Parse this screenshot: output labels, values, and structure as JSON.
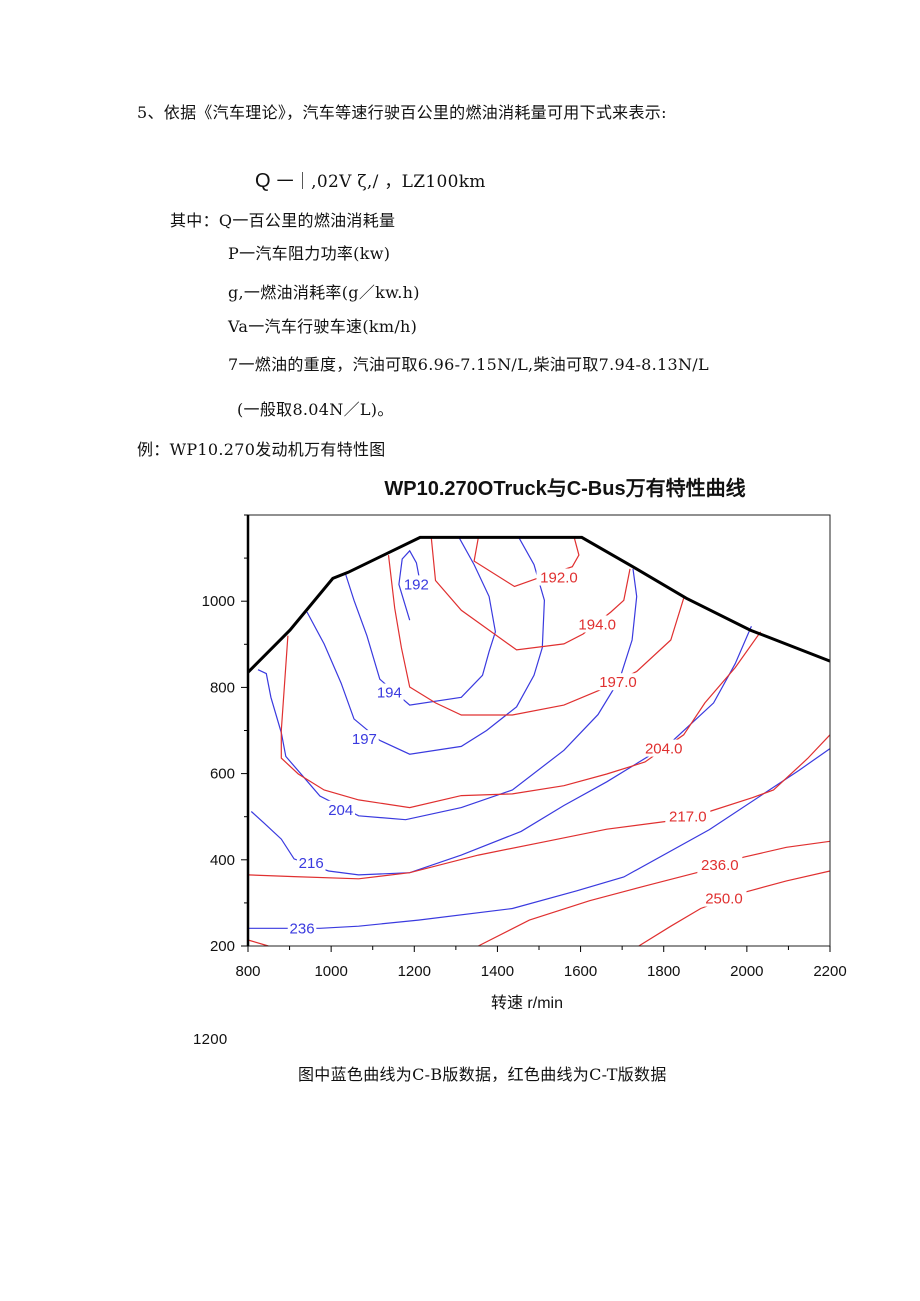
{
  "document": {
    "heading": "5、依据《汽车理论》，汽车等速行驶百公里的燃油消耗量可用下式来表示:",
    "formula_q": "Q",
    "formula_rest": "一｜,02V ζ,/ ，LZ100km",
    "where_line": "其中：Q一百公里的燃油消耗量",
    "defs": [
      "P一汽车阻力功率(kw)",
      "g,一燃油消耗率(g／kw.h)",
      "Va一汽车行驶车速(km/h)",
      "7一燃油的重度，汽油可取6.96-7.15N/L,柴油可取7.94-8.13N/L"
    ],
    "note": "(一般取8.04N／L)。",
    "example": "例：WP10.270发动机万有特性图",
    "stray_number": "1200",
    "caption": "图中蓝色曲线为C-B版数据，红色曲线为C-T版数据"
  },
  "chart_data": {
    "type": "contour",
    "title": "WP10.270OTruck与C-Bus万有特性曲线",
    "xlabel": "转速 r/min",
    "ylabel": "",
    "xlim": [
      800,
      2200
    ],
    "ylim": [
      200,
      1200
    ],
    "xticks": [
      800,
      1000,
      1200,
      1400,
      1600,
      1800,
      2000,
      2200
    ],
    "yticks": [
      200,
      400,
      600,
      800,
      1000
    ],
    "grid": false,
    "colors": {
      "blue": "#3a3adf",
      "red": "#e03030",
      "boundary": "#000000"
    },
    "boundary": [
      [
        800,
        835
      ],
      [
        901,
        933
      ],
      [
        1004,
        1053
      ],
      [
        1041,
        1067
      ],
      [
        1214,
        1148
      ],
      [
        1603,
        1148
      ],
      [
        1724,
        1081
      ],
      [
        1854,
        1007
      ],
      [
        2008,
        933
      ],
      [
        2200,
        861
      ]
    ],
    "series": [
      {
        "color": "blue",
        "label": "192",
        "label_point": [
          1205,
          1039
        ],
        "points": [
          [
            1189,
            956
          ],
          [
            1163,
            1039
          ],
          [
            1171,
            1098
          ],
          [
            1189,
            1117
          ],
          [
            1205,
            1089
          ],
          [
            1215,
            1039
          ]
        ]
      },
      {
        "color": "blue",
        "label": "194",
        "label_point": [
          1140,
          788
        ],
        "points": [
          [
            1308,
            1147
          ],
          [
            1344,
            1085
          ],
          [
            1380,
            1011
          ],
          [
            1395,
            929
          ],
          [
            1380,
            883
          ],
          [
            1364,
            828
          ],
          [
            1313,
            777
          ],
          [
            1189,
            759
          ],
          [
            1117,
            819
          ],
          [
            1086,
            920
          ],
          [
            1055,
            1002
          ],
          [
            1035,
            1062
          ]
        ]
      },
      {
        "color": "blue",
        "label": "197",
        "label_point": [
          1080,
          680
        ],
        "points": [
          [
            1452,
            1147
          ],
          [
            1488,
            1085
          ],
          [
            1513,
            1002
          ],
          [
            1508,
            892
          ],
          [
            1488,
            828
          ],
          [
            1446,
            755
          ],
          [
            1374,
            700
          ],
          [
            1313,
            663
          ],
          [
            1189,
            645
          ],
          [
            1117,
            677
          ],
          [
            1055,
            727
          ],
          [
            1024,
            810
          ],
          [
            983,
            901
          ],
          [
            942,
            975
          ]
        ]
      },
      {
        "color": "blue",
        "label": "204",
        "label_point": [
          1023,
          516
        ],
        "points": [
          [
            1726,
            1075
          ],
          [
            1735,
            1011
          ],
          [
            1724,
            910
          ],
          [
            1694,
            819
          ],
          [
            1642,
            737
          ],
          [
            1560,
            654
          ],
          [
            1436,
            562
          ],
          [
            1313,
            521
          ],
          [
            1179,
            493
          ],
          [
            1066,
            502
          ],
          [
            973,
            548
          ],
          [
            932,
            594
          ],
          [
            891,
            640
          ],
          [
            880,
            695
          ],
          [
            855,
            777
          ],
          [
            844,
            832
          ],
          [
            824,
            841
          ]
        ]
      },
      {
        "color": "blue",
        "label": "216",
        "label_point": [
          952,
          392
        ],
        "points": [
          [
            2011,
            942
          ],
          [
            1972,
            855
          ],
          [
            1920,
            764
          ],
          [
            1817,
            672
          ],
          [
            1663,
            581
          ],
          [
            1560,
            526
          ],
          [
            1457,
            466
          ],
          [
            1313,
            411
          ],
          [
            1189,
            370
          ],
          [
            1066,
            365
          ],
          [
            994,
            374
          ],
          [
            911,
            402
          ],
          [
            880,
            448
          ],
          [
            839,
            485
          ],
          [
            808,
            512
          ]
        ]
      },
      {
        "color": "blue",
        "label": "236",
        "label_point": [
          930,
          241
        ],
        "points": [
          [
            2200,
            658
          ],
          [
            2126,
            608
          ],
          [
            2054,
            562
          ],
          [
            1910,
            470
          ],
          [
            1704,
            360
          ],
          [
            1591,
            328
          ],
          [
            1436,
            287
          ],
          [
            1210,
            260
          ],
          [
            1066,
            246
          ],
          [
            973,
            241
          ],
          [
            800,
            241
          ]
        ]
      },
      {
        "color": "red",
        "label": "192.0",
        "label_point": [
          1548,
          1055
        ],
        "points": [
          [
            1585,
            1147
          ],
          [
            1596,
            1107
          ],
          [
            1580,
            1080
          ],
          [
            1508,
            1057
          ],
          [
            1441,
            1034
          ],
          [
            1344,
            1093
          ],
          [
            1354,
            1147
          ]
        ]
      },
      {
        "color": "red",
        "label": "194.0",
        "label_point": [
          1640,
          946
        ],
        "points": [
          [
            1719,
            1075
          ],
          [
            1704,
            1002
          ],
          [
            1673,
            975
          ],
          [
            1606,
            924
          ],
          [
            1560,
            901
          ],
          [
            1446,
            887
          ],
          [
            1313,
            979
          ],
          [
            1251,
            1048
          ],
          [
            1241,
            1147
          ]
        ]
      },
      {
        "color": "red",
        "label": "197.0",
        "label_point": [
          1690,
          812
        ],
        "points": [
          [
            1848,
            1007
          ],
          [
            1817,
            910
          ],
          [
            1735,
            837
          ],
          [
            1642,
            792
          ],
          [
            1560,
            759
          ],
          [
            1436,
            736
          ],
          [
            1313,
            736
          ],
          [
            1251,
            764
          ],
          [
            1189,
            801
          ],
          [
            1169,
            892
          ],
          [
            1153,
            984
          ],
          [
            1138,
            1107
          ]
        ]
      },
      {
        "color": "red",
        "label": "204.0",
        "label_point": [
          1800,
          658
        ],
        "points": [
          [
            2033,
            929
          ],
          [
            1972,
            846
          ],
          [
            1899,
            764
          ],
          [
            1848,
            690
          ],
          [
            1755,
            627
          ],
          [
            1663,
            599
          ],
          [
            1560,
            572
          ],
          [
            1436,
            553
          ],
          [
            1313,
            549
          ],
          [
            1189,
            521
          ],
          [
            1066,
            539
          ],
          [
            983,
            562
          ],
          [
            921,
            599
          ],
          [
            880,
            636
          ],
          [
            880,
            700
          ],
          [
            896,
            920
          ]
        ]
      },
      {
        "color": "red",
        "label": "217.0",
        "label_point": [
          1858,
          500
        ],
        "points": [
          [
            2200,
            690
          ],
          [
            2146,
            635
          ],
          [
            2064,
            562
          ],
          [
            2013,
            544
          ],
          [
            1910,
            512
          ],
          [
            1807,
            489
          ],
          [
            1663,
            471
          ],
          [
            1519,
            443
          ],
          [
            1354,
            411
          ],
          [
            1189,
            370
          ],
          [
            1066,
            356
          ],
          [
            911,
            361
          ],
          [
            800,
            365
          ]
        ]
      },
      {
        "color": "red",
        "label": "236.0",
        "label_point": [
          1935,
          388
        ],
        "points": [
          [
            2200,
            443
          ],
          [
            2095,
            429
          ],
          [
            1992,
            406
          ],
          [
            1879,
            370
          ],
          [
            1766,
            342
          ],
          [
            1622,
            305
          ],
          [
            1477,
            260
          ],
          [
            1354,
            200
          ]
        ]
      },
      {
        "color": "red",
        "label": "250.0",
        "label_point": [
          1945,
          310
        ],
        "points": [
          [
            2200,
            374
          ],
          [
            2095,
            351
          ],
          [
            1992,
            324
          ],
          [
            1889,
            287
          ],
          [
            1817,
            246
          ],
          [
            1740,
            200
          ]
        ]
      },
      {
        "color": "red",
        "label": "",
        "label_point": null,
        "points": [
          [
            800,
            214
          ],
          [
            849,
            200
          ]
        ]
      }
    ]
  }
}
